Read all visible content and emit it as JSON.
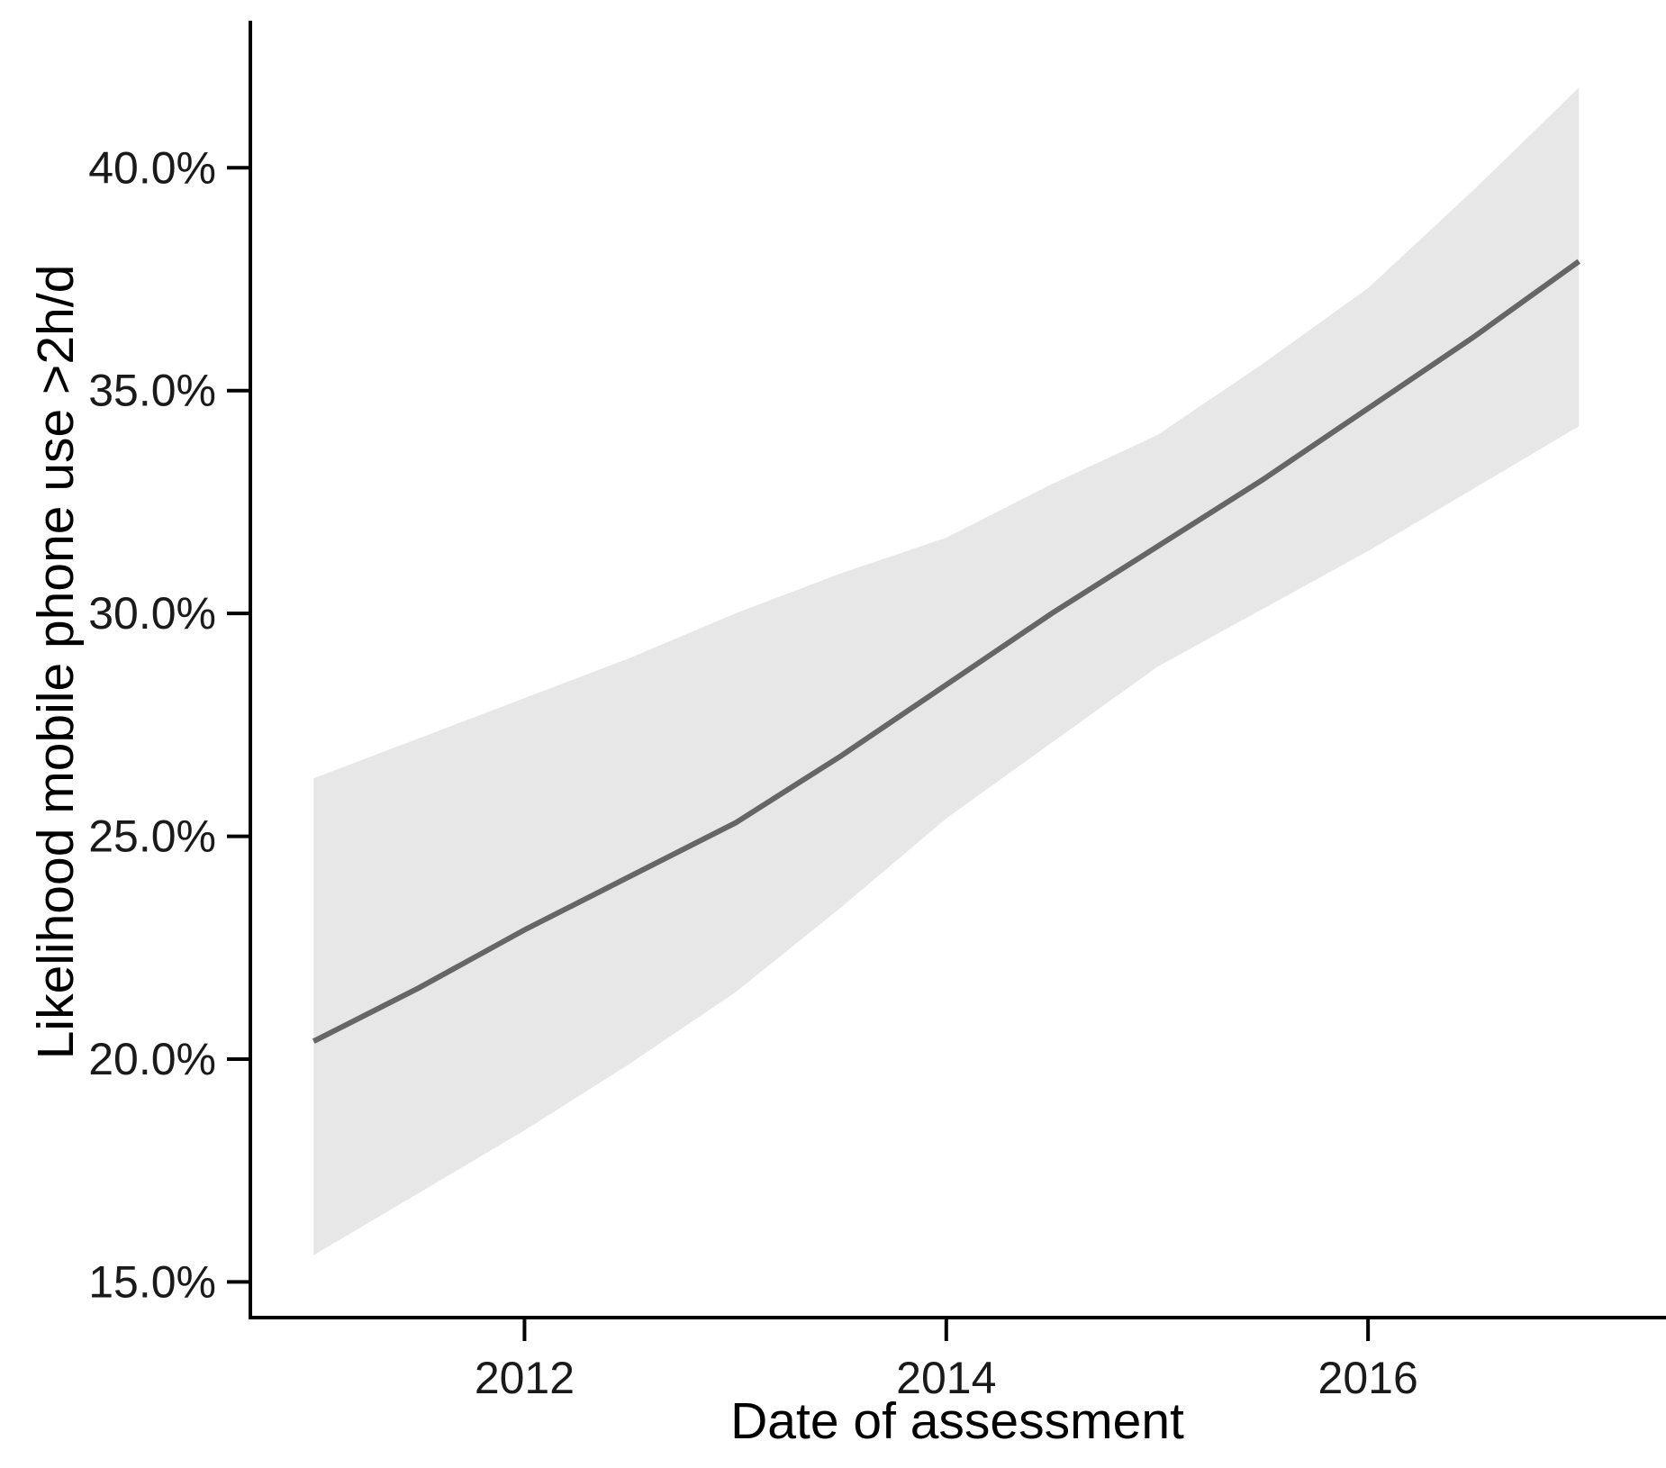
{
  "chart_data": {
    "type": "line",
    "title": "",
    "xlabel": "Date of assessment",
    "ylabel": "Likelihood mobile phone use >2h/d",
    "x_unit": "year (date of assessment)",
    "y_unit": "percent likelihood",
    "x": [
      2011,
      2011.5,
      2012,
      2012.5,
      2013,
      2013.5,
      2014,
      2014.5,
      2015,
      2015.5,
      2016,
      2016.5,
      2017
    ],
    "series": [
      {
        "name": "fitted-likelihood",
        "values": [
          20.4,
          21.6,
          22.9,
          24.1,
          25.3,
          26.8,
          28.4,
          30.0,
          31.5,
          33.0,
          34.6,
          36.2,
          37.9
        ]
      },
      {
        "name": "ci-lower",
        "values": [
          15.6,
          17.0,
          18.4,
          19.9,
          21.5,
          23.4,
          25.4,
          27.1,
          28.8,
          30.1,
          31.4,
          32.8,
          34.2
        ]
      },
      {
        "name": "ci-upper",
        "values": [
          26.3,
          27.2,
          28.1,
          29.0,
          30.0,
          30.9,
          31.7,
          32.9,
          34.0,
          35.6,
          37.3,
          39.5,
          41.8
        ]
      }
    ],
    "x_ticks": {
      "values": [
        2012,
        2014,
        2016
      ],
      "labels": [
        "2012",
        "2014",
        "2016"
      ]
    },
    "y_ticks": {
      "values": [
        15,
        20,
        25,
        30,
        35,
        40
      ],
      "labels": [
        "15.0%",
        "20.0%",
        "25.0%",
        "30.0%",
        "35.0%",
        "40.0%"
      ]
    },
    "xlim": [
      2010.7,
      2017.4
    ],
    "ylim": [
      14.2,
      43.3
    ],
    "grid": false,
    "legend_position": "none",
    "colors": {
      "confidence_band": "#e7e7e7",
      "trend_line": "#666666",
      "axis_line": "#000000",
      "tick_text": "#1a1a1a"
    }
  }
}
